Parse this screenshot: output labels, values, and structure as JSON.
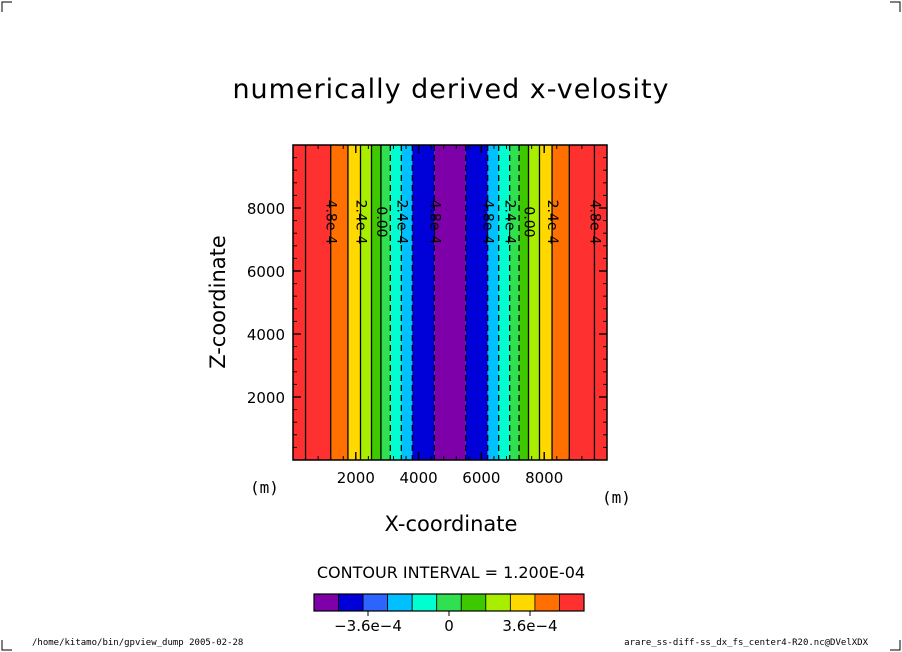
{
  "chart_data": {
    "type": "heatmap",
    "title": "numerically derived x-velosity",
    "xlabel": "X-coordinate",
    "ylabel": "Z-coordinate",
    "x_unit": "(m)",
    "y_unit": "(m)",
    "xlim": [
      0,
      10000
    ],
    "ylim": [
      0,
      10000
    ],
    "x_ticks": [
      2000,
      4000,
      6000,
      8000
    ],
    "x_tick_labels": [
      "2000",
      "4000",
      "6000",
      "8000"
    ],
    "y_ticks": [
      2000,
      4000,
      6000,
      8000
    ],
    "y_tick_labels": [
      "2000",
      "4000",
      "6000",
      "8000"
    ],
    "contour_interval": "CONTOUR INTERVAL = 1.200E-04",
    "color_levels": [
      -0.0006,
      -0.00048,
      -0.00036,
      -0.00024,
      -0.00012,
      0,
      0.00012,
      0.00024,
      0.00036,
      0.00048,
      0.0006
    ],
    "colors": [
      "#7e00a8",
      "#0000d8",
      "#2c64ff",
      "#00c0ff",
      "#00ffd0",
      "#30e050",
      "#3ec800",
      "#a8ee00",
      "#ffd800",
      "#ff7000",
      "#ff3030"
    ],
    "bands": [
      {
        "x0": 0,
        "x1": 400,
        "level": 10
      },
      {
        "x0": 400,
        "x1": 1200,
        "level": 10
      },
      {
        "x0": 1200,
        "x1": 1750,
        "level": 9
      },
      {
        "x0": 1750,
        "x1": 2150,
        "level": 8
      },
      {
        "x0": 2150,
        "x1": 2500,
        "level": 7
      },
      {
        "x0": 2500,
        "x1": 2800,
        "level": 6
      },
      {
        "x0": 2800,
        "x1": 3100,
        "level": 5
      },
      {
        "x0": 3100,
        "x1": 3450,
        "level": 4
      },
      {
        "x0": 3450,
        "x1": 3800,
        "level": 3
      },
      {
        "x0": 3800,
        "x1": 4500,
        "level": 1
      },
      {
        "x0": 4500,
        "x1": 5500,
        "level": 0
      },
      {
        "x0": 5500,
        "x1": 6200,
        "level": 1
      },
      {
        "x0": 6200,
        "x1": 6550,
        "level": 3
      },
      {
        "x0": 6550,
        "x1": 6900,
        "level": 4
      },
      {
        "x0": 6900,
        "x1": 7200,
        "level": 5
      },
      {
        "x0": 7200,
        "x1": 7500,
        "level": 6
      },
      {
        "x0": 7500,
        "x1": 7850,
        "level": 7
      },
      {
        "x0": 7850,
        "x1": 8250,
        "level": 8
      },
      {
        "x0": 8250,
        "x1": 8800,
        "level": 9
      },
      {
        "x0": 8800,
        "x1": 9600,
        "level": 10
      },
      {
        "x0": 9600,
        "x1": 10000,
        "level": 10
      }
    ],
    "contours": [
      {
        "x": 400,
        "value": 0.0006
      },
      {
        "x": 1200,
        "value": 0.00048,
        "label": "4.8e-4"
      },
      {
        "x": 1750,
        "value": 0.00036
      },
      {
        "x": 2150,
        "value": 0.00024,
        "label": "2.4e-4"
      },
      {
        "x": 2500,
        "value": 0.00012
      },
      {
        "x": 2800,
        "value": 0,
        "label": "0.00"
      },
      {
        "x": 3100,
        "value": -0.00012
      },
      {
        "x": 3450,
        "value": -0.00024,
        "label": "2.4e-4"
      },
      {
        "x": 3800,
        "value": -0.00036
      },
      {
        "x": 4500,
        "value": -0.00048,
        "label": "4.8e-4"
      },
      {
        "x": 5500,
        "value": -0.00048
      },
      {
        "x": 6200,
        "value": -0.00048,
        "label": "4.8e-4"
      },
      {
        "x": 6550,
        "value": -0.00036
      },
      {
        "x": 6900,
        "value": -0.00024,
        "label": "2.4e-4"
      },
      {
        "x": 7200,
        "value": -0.00012
      },
      {
        "x": 7500,
        "value": 0,
        "label": "0.00"
      },
      {
        "x": 7850,
        "value": 0.00012
      },
      {
        "x": 8250,
        "value": 0.00024,
        "label": "2.4e-4"
      },
      {
        "x": 8800,
        "value": 0.00036
      },
      {
        "x": 9600,
        "value": 0.00048,
        "label": "4.8e-4"
      }
    ],
    "colorbar": {
      "colors": [
        "#7e00a8",
        "#0000d8",
        "#2c64ff",
        "#00c0ff",
        "#00ffd0",
        "#30e050",
        "#3ec800",
        "#a8ee00",
        "#ffd800",
        "#ff7000",
        "#ff3030"
      ],
      "tick_values": [
        -0.00036,
        0,
        0.00036
      ],
      "tick_labels": [
        "−3.6e−4",
        "0",
        "3.6e−4"
      ]
    }
  },
  "footer": {
    "left": "/home/kitamo/bin/gpview_dump  2005-02-28",
    "right": "arare_ss-diff-ss_dx_fs_center4-R20.nc@DVelXDX"
  }
}
